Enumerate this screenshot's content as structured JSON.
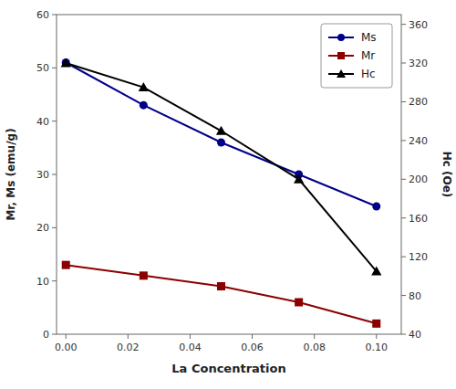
{
  "chart_data": {
    "type": "line",
    "xlabel": "La Concentration",
    "ylabel": "Mr, Ms (emu/g)",
    "y2label": "Hc (Oe)",
    "x": [
      0.0,
      0.025,
      0.05,
      0.075,
      0.1
    ],
    "series": [
      {
        "name": "Ms",
        "color": "#00008B",
        "marker": "circle",
        "line_style": "solid",
        "values": [
          51.0,
          43.0,
          36.0,
          30.0,
          24.0
        ]
      },
      {
        "name": "Mr",
        "color": "#8B0000",
        "marker": "square",
        "line_style": "solid",
        "values": [
          13.0,
          11.0,
          9.0,
          6.0,
          2.0
        ]
      },
      {
        "name": "Hc",
        "color": "#000000",
        "marker": "triangle",
        "line_style": "solid",
        "axis": "y2",
        "values": [
          320,
          295,
          250,
          200,
          105
        ]
      }
    ],
    "xlim": [
      -0.003,
      0.108
    ],
    "xticks": [
      {
        "value": 0.0,
        "label": "0.00"
      },
      0.02,
      0.04,
      0.06,
      0.08,
      {
        "value": 0.1,
        "label": "0.10"
      }
    ],
    "ylim": [
      0,
      60
    ],
    "yticks": [
      0,
      10,
      20,
      30,
      40,
      50,
      60
    ],
    "y2lim": [
      40,
      370
    ],
    "y2ticks": [
      40,
      80,
      120,
      160,
      200,
      240,
      280,
      320,
      360
    ],
    "grid": false,
    "legend": "upper right"
  }
}
